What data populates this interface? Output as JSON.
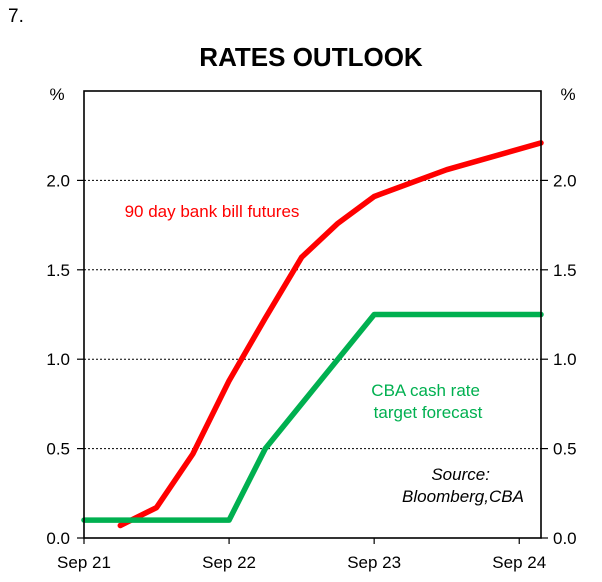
{
  "figure_number": "7.",
  "chart_data": {
    "type": "line",
    "title": "RATES OUTLOOK",
    "y_unit_left": "%",
    "y_unit_right": "%",
    "ylim": [
      0,
      2.5
    ],
    "yticks": [
      0.0,
      0.5,
      1.0,
      1.5,
      2.0
    ],
    "ytick_labels": [
      "0.0",
      "0.5",
      "1.0",
      "1.5",
      "2.0"
    ],
    "xlim": [
      0,
      3.15
    ],
    "xticks": [
      0,
      1,
      2,
      3
    ],
    "xtick_labels": [
      "Sep 21",
      "Sep 22",
      "Sep 23",
      "Sep 24"
    ],
    "grid": "horizontal-dotted",
    "series": [
      {
        "name": "90 day bank bill futures",
        "color": "#ff0000",
        "label_lines": [
          "90 day bank bill futures"
        ],
        "x": [
          0.25,
          0.5,
          0.75,
          1.0,
          1.25,
          1.5,
          1.75,
          2.0,
          2.5,
          3.15
        ],
        "y": [
          0.07,
          0.17,
          0.47,
          0.88,
          1.23,
          1.57,
          1.76,
          1.91,
          2.06,
          2.21
        ]
      },
      {
        "name": "CBA cash rate target forecast",
        "color": "#00b050",
        "label_lines": [
          "CBA cash rate",
          "target forecast"
        ],
        "x": [
          0,
          1.0,
          1.25,
          2.0,
          3.15
        ],
        "y": [
          0.1,
          0.1,
          0.5,
          1.25,
          1.25
        ]
      }
    ],
    "annotation_lines": [
      "Source:",
      "Bloomberg,CBA"
    ]
  }
}
